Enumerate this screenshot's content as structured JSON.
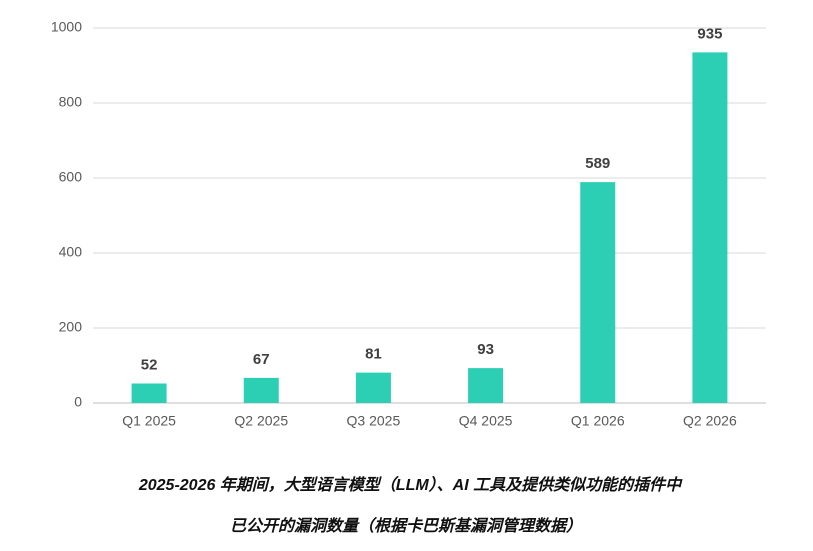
{
  "chart_data": {
    "type": "bar",
    "categories": [
      "Q1 2025",
      "Q2 2025",
      "Q3 2025",
      "Q4 2025",
      "Q1 2026",
      "Q2 2026"
    ],
    "values": [
      52,
      67,
      81,
      93,
      589,
      935
    ],
    "color": "#2ccfb3",
    "ylim": [
      0,
      1000
    ],
    "yticks": [
      0,
      200,
      400,
      600,
      800,
      1000
    ],
    "grid": true,
    "caption": [
      "2025-2026 年期间，大型语言模型（LLM）、AI 工具及提供类似功能的插件中",
      "已公开的漏洞数量（根据卡巴斯基漏洞管理数据）"
    ]
  }
}
